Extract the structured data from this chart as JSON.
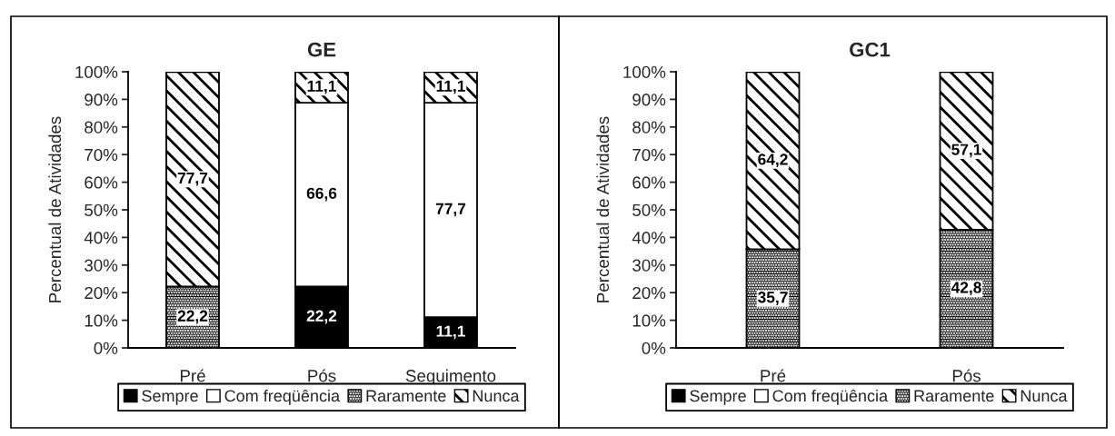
{
  "chart_data": [
    {
      "type": "bar",
      "stacked": true,
      "title": "GE",
      "ylabel": "Percentual de Atividades",
      "categories": [
        "Pré",
        "Pós",
        "Seguimento"
      ],
      "series": [
        {
          "name": "Sempre",
          "color": "#000000",
          "values": [
            null,
            22.2,
            11.1
          ],
          "value_labels": [
            null,
            "22,2",
            "11,1"
          ]
        },
        {
          "name": "Com freqüência",
          "color": "#ffffff",
          "values": [
            null,
            66.6,
            77.7
          ],
          "value_labels": [
            null,
            "66,6",
            "77,7"
          ]
        },
        {
          "name": "Raramente",
          "color": "#000000",
          "values": [
            22.2,
            null,
            null
          ],
          "value_labels": [
            "22,2",
            null,
            null
          ]
        },
        {
          "name": "Nunca",
          "color": "#000000",
          "values": [
            77.7,
            11.1,
            11.1
          ],
          "value_labels": [
            "77,7",
            "11,1",
            "11,1"
          ]
        }
      ],
      "ylim": [
        0,
        100
      ],
      "yticks": [
        {
          "value": 0,
          "label": "0%"
        },
        {
          "value": 10,
          "label": "10%"
        },
        {
          "value": 20,
          "label": "20%"
        },
        {
          "value": 30,
          "label": "30%"
        },
        {
          "value": 40,
          "label": "40%"
        },
        {
          "value": 50,
          "label": "50%"
        },
        {
          "value": 60,
          "label": "60%"
        },
        {
          "value": 70,
          "label": "70%"
        },
        {
          "value": 80,
          "label": "80%"
        },
        {
          "value": 90,
          "label": "90%"
        },
        {
          "value": 100,
          "label": "100%"
        }
      ],
      "grid": false,
      "legend": "bottom"
    },
    {
      "type": "bar",
      "stacked": true,
      "title": "GC1",
      "ylabel": "Percentual de Atividades",
      "categories": [
        "Pré",
        "Pós"
      ],
      "series": [
        {
          "name": "Sempre",
          "color": "#000000",
          "values": [
            null,
            null
          ],
          "value_labels": [
            null,
            null
          ]
        },
        {
          "name": "Com freqüência",
          "color": "#ffffff",
          "values": [
            null,
            null
          ],
          "value_labels": [
            null,
            null
          ]
        },
        {
          "name": "Raramente",
          "color": "#000000",
          "values": [
            35.7,
            42.8
          ],
          "value_labels": [
            "35,7",
            "42,8"
          ]
        },
        {
          "name": "Nunca",
          "color": "#000000",
          "values": [
            64.2,
            57.1
          ],
          "value_labels": [
            "64,2",
            "57,1"
          ]
        }
      ],
      "ylim": [
        0,
        100
      ],
      "yticks": [
        {
          "value": 0,
          "label": "0%"
        },
        {
          "value": 10,
          "label": "10%"
        },
        {
          "value": 20,
          "label": "20%"
        },
        {
          "value": 30,
          "label": "30%"
        },
        {
          "value": 40,
          "label": "40%"
        },
        {
          "value": 50,
          "label": "50%"
        },
        {
          "value": 60,
          "label": "60%"
        },
        {
          "value": 70,
          "label": "70%"
        },
        {
          "value": 80,
          "label": "80%"
        },
        {
          "value": 90,
          "label": "90%"
        },
        {
          "value": 100,
          "label": "100%"
        }
      ],
      "grid": false,
      "legend": "bottom"
    }
  ]
}
